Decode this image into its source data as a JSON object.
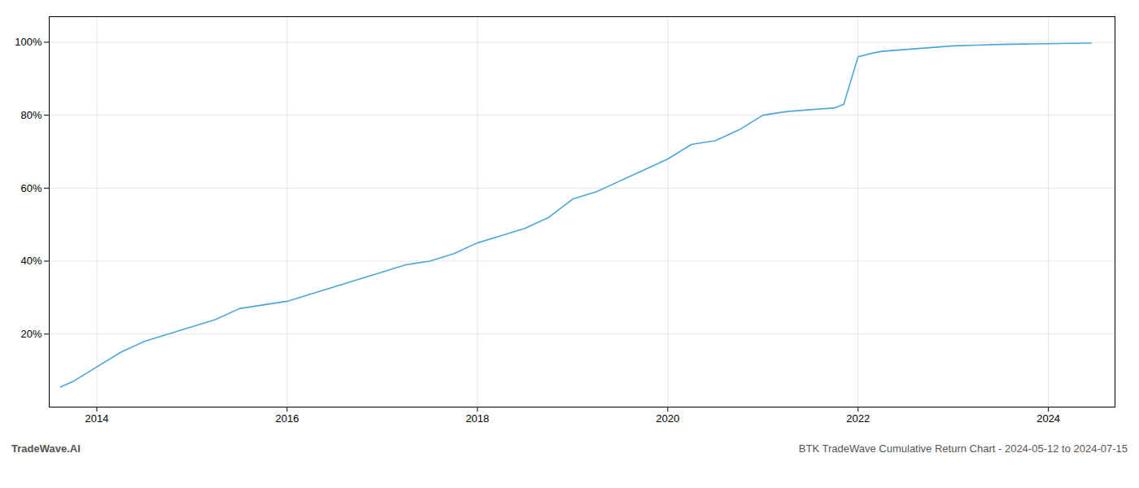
{
  "chart_data": {
    "type": "line",
    "title": "BTK TradeWave Cumulative Return Chart - 2024-05-12 to 2024-07-15",
    "annotations": [
      "TradeWave.AI"
    ],
    "color": "#4da6d9",
    "x": [
      2013.62,
      2013.75,
      2014.0,
      2014.25,
      2014.5,
      2014.75,
      2015.0,
      2015.25,
      2015.5,
      2015.75,
      2016.0,
      2016.25,
      2016.5,
      2016.75,
      2017.0,
      2017.25,
      2017.5,
      2017.75,
      2018.0,
      2018.25,
      2018.5,
      2018.75,
      2019.0,
      2019.25,
      2019.5,
      2019.75,
      2020.0,
      2020.25,
      2020.5,
      2020.75,
      2021.0,
      2021.25,
      2021.5,
      2021.75,
      2021.85,
      2022.0,
      2022.15,
      2022.25,
      2022.5,
      2022.75,
      2023.0,
      2023.25,
      2023.5,
      2023.75,
      2024.0,
      2024.25,
      2024.45
    ],
    "values": [
      5.5,
      7,
      11,
      15,
      18,
      20,
      22,
      24,
      27,
      28,
      29,
      31,
      33,
      35,
      37,
      39,
      40,
      42,
      45,
      47,
      49,
      52,
      57,
      59,
      62,
      65,
      68,
      72,
      73,
      76,
      80,
      81,
      81.5,
      82,
      83,
      96,
      97,
      97.5,
      98,
      98.5,
      99,
      99.2,
      99.4,
      99.5,
      99.6,
      99.7,
      99.75
    ],
    "xlim": [
      2013.5,
      2024.7
    ],
    "ylim": [
      0,
      107
    ],
    "xticks": [
      2014,
      2016,
      2018,
      2020,
      2022,
      2024
    ],
    "yticks": [
      {
        "value": 20,
        "label": "20%"
      },
      {
        "value": 40,
        "label": "40%"
      },
      {
        "value": 60,
        "label": "60%"
      },
      {
        "value": 80,
        "label": "80%"
      },
      {
        "value": 100,
        "label": "100%"
      }
    ],
    "grid": true
  }
}
